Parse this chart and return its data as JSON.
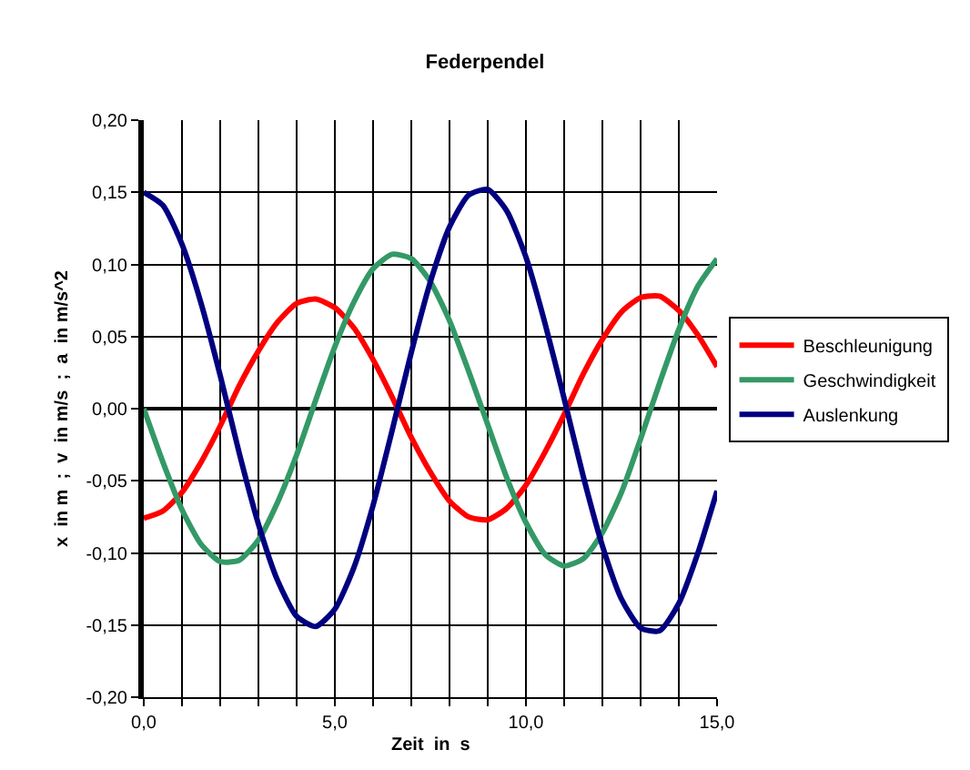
{
  "chart_data": {
    "type": "line",
    "title": "Federpendel",
    "xlabel": "Zeit  in  s",
    "ylabel": "x  in m  ;  v  in m/s  ;  a  in m/s^2",
    "x": [
      0,
      0.5,
      1,
      1.5,
      2,
      2.5,
      3,
      3.5,
      4,
      4.5,
      5,
      5.5,
      6,
      6.5,
      7,
      7.5,
      8,
      8.5,
      9,
      9.5,
      10,
      10.5,
      11,
      11.5,
      12,
      12.5,
      13,
      13.5,
      14,
      14.5,
      15
    ],
    "series": [
      {
        "name": "Beschleunigung",
        "color": "#ff0000",
        "values": [
          -0.076,
          -0.071,
          -0.058,
          -0.037,
          -0.012,
          0.016,
          0.04,
          0.06,
          0.073,
          0.076,
          0.07,
          0.056,
          0.034,
          0.008,
          -0.02,
          -0.044,
          -0.064,
          -0.075,
          -0.077,
          -0.069,
          -0.053,
          -0.03,
          -0.004,
          0.024,
          0.048,
          0.067,
          0.077,
          0.078,
          0.068,
          0.051,
          0.029
        ]
      },
      {
        "name": "Geschwindigkeit",
        "color": "#339966",
        "values": [
          0,
          -0.037,
          -0.07,
          -0.094,
          -0.106,
          -0.105,
          -0.091,
          -0.065,
          -0.032,
          0.006,
          0.043,
          0.074,
          0.097,
          0.107,
          0.104,
          0.088,
          0.061,
          0.026,
          -0.011,
          -0.048,
          -0.079,
          -0.101,
          -0.109,
          -0.104,
          -0.086,
          -0.058,
          -0.021,
          0.018,
          0.055,
          0.085,
          0.104
        ]
      },
      {
        "name": "Auslenkung",
        "color": "#000080",
        "values": [
          0.15,
          0.141,
          0.114,
          0.073,
          0.023,
          -0.031,
          -0.08,
          -0.119,
          -0.144,
          -0.151,
          -0.139,
          -0.11,
          -0.067,
          -0.015,
          0.039,
          0.088,
          0.126,
          0.148,
          0.152,
          0.137,
          0.105,
          0.059,
          0.007,
          -0.047,
          -0.095,
          -0.132,
          -0.152,
          -0.154,
          -0.135,
          -0.1,
          -0.057
        ]
      }
    ],
    "xlim": [
      0,
      15
    ],
    "xticks": [
      {
        "value": 0,
        "label": "0,0"
      },
      {
        "value": 1,
        "label": null
      },
      {
        "value": 2,
        "label": null
      },
      {
        "value": 3,
        "label": null
      },
      {
        "value": 4,
        "label": null
      },
      {
        "value": 5,
        "label": "5,0"
      },
      {
        "value": 6,
        "label": null
      },
      {
        "value": 7,
        "label": null
      },
      {
        "value": 8,
        "label": null
      },
      {
        "value": 9,
        "label": null
      },
      {
        "value": 10,
        "label": "10,0"
      },
      {
        "value": 11,
        "label": null
      },
      {
        "value": 12,
        "label": null
      },
      {
        "value": 13,
        "label": null
      },
      {
        "value": 14,
        "label": null
      },
      {
        "value": 15,
        "label": "15,0"
      }
    ],
    "ylim": [
      -0.2,
      0.2
    ],
    "yticks": [
      {
        "value": -0.2,
        "label": "-0,20"
      },
      {
        "value": -0.15,
        "label": "-0,15"
      },
      {
        "value": -0.1,
        "label": "-0,10"
      },
      {
        "value": -0.05,
        "label": "-0,05"
      },
      {
        "value": 0,
        "label": "0,00"
      },
      {
        "value": 0.05,
        "label": "0,05"
      },
      {
        "value": 0.1,
        "label": "0,10"
      },
      {
        "value": 0.15,
        "label": "0,15"
      },
      {
        "value": 0.2,
        "label": "0,20"
      }
    ],
    "grid": true,
    "legend": "right",
    "marker": "none",
    "line_style": "solid"
  }
}
